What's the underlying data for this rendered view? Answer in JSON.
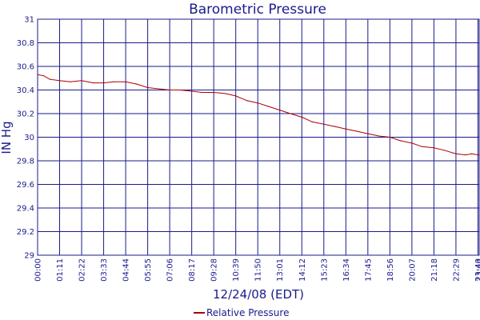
{
  "chart_data": {
    "type": "line",
    "title": "Barometric Pressure",
    "xlabel": "12/24/08 (EDT)",
    "ylabel": "IN Hg",
    "ylim": [
      29,
      31
    ],
    "yticks": [
      "29",
      "29.2",
      "29.4",
      "29.6",
      "29.8",
      "30",
      "30.2",
      "30.4",
      "30.6",
      "30.8",
      "31"
    ],
    "xticks": [
      "00:00",
      "01:11",
      "02:22",
      "03:33",
      "04:44",
      "05:55",
      "07:06",
      "08:17",
      "09:28",
      "10:39",
      "11:50",
      "13:01",
      "14:12",
      "15:23",
      "16:34",
      "17:45",
      "18:56",
      "20:07",
      "21:18",
      "22:29",
      "23:40",
      "23:44"
    ],
    "grid": true,
    "legend_position": "bottom",
    "series": [
      {
        "name": "Relative Pressure",
        "color": "#aa0000",
        "x": [
          "00:00",
          "00:20",
          "00:40",
          "01:11",
          "01:45",
          "02:22",
          "03:00",
          "03:33",
          "04:05",
          "04:44",
          "05:20",
          "05:55",
          "06:30",
          "07:06",
          "07:40",
          "08:17",
          "08:50",
          "09:28",
          "10:05",
          "10:39",
          "11:15",
          "11:50",
          "12:25",
          "13:01",
          "13:35",
          "14:12",
          "14:45",
          "15:23",
          "16:00",
          "16:34",
          "17:10",
          "17:45",
          "18:20",
          "18:56",
          "19:30",
          "20:07",
          "20:40",
          "21:18",
          "21:50",
          "22:29",
          "23:00",
          "23:20",
          "23:40",
          "23:44"
        ],
        "values": [
          30.53,
          30.52,
          30.49,
          30.48,
          30.47,
          30.48,
          30.46,
          30.46,
          30.47,
          30.47,
          30.45,
          30.42,
          30.41,
          30.4,
          30.4,
          30.39,
          30.38,
          30.38,
          30.37,
          30.35,
          30.31,
          30.29,
          30.26,
          30.23,
          30.2,
          30.17,
          30.13,
          30.11,
          30.09,
          30.07,
          30.05,
          30.03,
          30.01,
          30.0,
          29.97,
          29.95,
          29.92,
          29.91,
          29.89,
          29.86,
          29.85,
          29.86,
          29.85,
          29.85
        ]
      }
    ]
  }
}
